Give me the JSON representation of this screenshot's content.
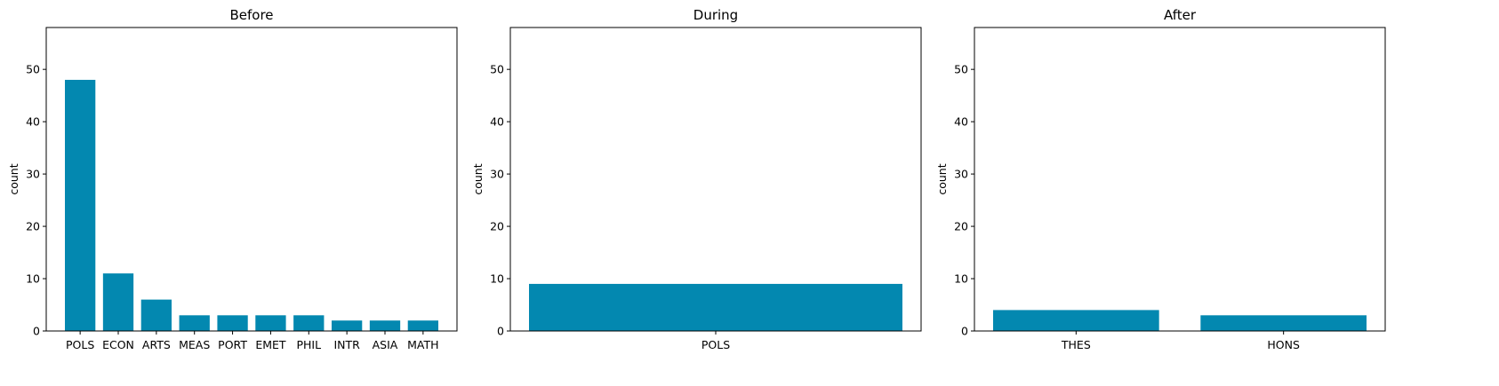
{
  "chart_data": [
    {
      "type": "bar",
      "title": "Before",
      "xlabel": "",
      "ylabel": "count",
      "ylim": [
        0,
        58
      ],
      "yticks": [
        0,
        10,
        20,
        30,
        40,
        50
      ],
      "grid": false,
      "categories": [
        "POLS",
        "ECON",
        "ARTS",
        "MEAS",
        "PORT",
        "EMET",
        "PHIL",
        "INTR",
        "ASIA",
        "MATH"
      ],
      "values": [
        48,
        11,
        6,
        3,
        3,
        3,
        3,
        2,
        2,
        2
      ],
      "color": "#0388b0"
    },
    {
      "type": "bar",
      "title": "During",
      "xlabel": "",
      "ylabel": "count",
      "ylim": [
        0,
        58
      ],
      "yticks": [
        0,
        10,
        20,
        30,
        40,
        50
      ],
      "grid": false,
      "categories": [
        "POLS"
      ],
      "values": [
        9
      ],
      "color": "#0388b0"
    },
    {
      "type": "bar",
      "title": "After",
      "xlabel": "",
      "ylabel": "count",
      "ylim": [
        0,
        58
      ],
      "yticks": [
        0,
        10,
        20,
        30,
        40,
        50
      ],
      "grid": false,
      "categories": [
        "THES",
        "HONS"
      ],
      "values": [
        4,
        3
      ],
      "color": "#0388b0"
    }
  ]
}
